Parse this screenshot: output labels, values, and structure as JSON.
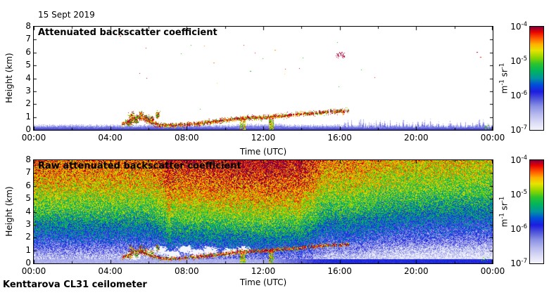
{
  "page": {
    "date_label": "15 Sept 2019",
    "footer_label": "Kenttarova CL31 ceilometer",
    "background": "#ffffff",
    "text_color": "#000000"
  },
  "panels": [
    {
      "title": "Attenuated backscatter coefficient",
      "xlabel": "Time (UTC)",
      "ylabel": "Height (km)"
    },
    {
      "title": "Raw attenuated backscatter coefficient",
      "xlabel": "Time (UTC)",
      "ylabel": "Height (km)"
    }
  ],
  "axes": {
    "x_tick_labels": [
      "00:00",
      "04:00",
      "08:00",
      "12:00",
      "16:00",
      "20:00",
      "00:00"
    ],
    "x_tick_hours": [
      0,
      4,
      8,
      12,
      16,
      20,
      24
    ],
    "x_minor_tick_hours": [
      2,
      6,
      10,
      14,
      18,
      22
    ],
    "y_tick_labels": [
      "0",
      "1",
      "2",
      "3",
      "4",
      "5",
      "6",
      "7",
      "8"
    ],
    "x_range_hours": [
      0,
      24
    ],
    "y_range_km": [
      0,
      8
    ]
  },
  "colorbar": {
    "tick_base": "10",
    "tick_exponents": [
      "-4",
      "-5",
      "-6",
      "-7"
    ],
    "unit_parts": [
      [
        "m",
        "n"
      ],
      [
        "-1",
        "s"
      ],
      [
        " sr",
        "n"
      ],
      [
        "-1",
        "s"
      ]
    ],
    "stops": [
      [
        0,
        "#f4f4fc"
      ],
      [
        0.07,
        "#dcdcf6"
      ],
      [
        0.15,
        "#b8baee"
      ],
      [
        0.23,
        "#8a90e4"
      ],
      [
        0.3,
        "#5056da"
      ],
      [
        0.37,
        "#1c1ce0"
      ],
      [
        0.44,
        "#0050d8"
      ],
      [
        0.5,
        "#0093a0"
      ],
      [
        0.57,
        "#00b360"
      ],
      [
        0.64,
        "#2cc42c"
      ],
      [
        0.7,
        "#8cd400"
      ],
      [
        0.77,
        "#e6e400"
      ],
      [
        0.83,
        "#ffb000"
      ],
      [
        0.89,
        "#ff5500"
      ],
      [
        0.95,
        "#e60000"
      ],
      [
        1,
        "#7c0040"
      ]
    ]
  },
  "chart_data": [
    {
      "type": "heatmap",
      "title": "Attenuated backscatter coefficient",
      "xlabel": "Time (UTC)",
      "ylabel": "Height (km)",
      "x_tick_labels": [
        "00:00",
        "04:00",
        "08:00",
        "12:00",
        "16:00",
        "20:00",
        "00:00"
      ],
      "x_range_hours": [
        0,
        24
      ],
      "y_range_km": [
        0,
        8
      ],
      "color_scale": {
        "type": "log",
        "min": "1e-7",
        "max": "1e-4",
        "unit": "m-1 sr-1",
        "colormap": "jet-white-low"
      },
      "description": "Mostly clear sky above a shallow blue boundary layer (0-0.5 km, spikier after 16:00). A dark-red aerosol/cloud-base layer rises from ~0.45 km at 04:40 to ~1.5 km at 16:20 with green/yellow fringes; precipitation streaks reach the ground near 10:50 and 12:20; isolated cloud returns near 16:00 at ~5.9 km, 17-18:00 at 4-5 km and ~23:15 at ~6 km.",
      "features": {
        "boundary_layer_top_km": [
          0.3,
          0.45
        ],
        "spiky_after_hour": 16,
        "layer_track": [
          [
            4.6,
            0.45
          ],
          [
            5,
            0.75
          ],
          [
            5.4,
            1
          ],
          [
            5.8,
            0.85
          ],
          [
            6.2,
            0.55
          ],
          [
            6.6,
            0.42
          ],
          [
            7.2,
            0.38
          ],
          [
            8,
            0.45
          ],
          [
            8.8,
            0.55
          ],
          [
            9.6,
            0.7
          ],
          [
            10.4,
            0.85
          ],
          [
            11.2,
            0.95
          ],
          [
            12,
            1
          ],
          [
            12.8,
            1.1
          ],
          [
            13.6,
            1.2
          ],
          [
            14.4,
            1.3
          ],
          [
            15.2,
            1.4
          ],
          [
            16.45,
            1.5
          ]
        ],
        "plume_blobs": [
          [
            5,
            0.55,
            0.15,
            0.2
          ],
          [
            5.1,
            1.1,
            0.15,
            0.3
          ],
          [
            5.35,
            0.75,
            0.12,
            0.25
          ],
          [
            5.6,
            1.15,
            0.13,
            0.3
          ],
          [
            5.85,
            0.95,
            0.15,
            0.3
          ],
          [
            6.15,
            0.8,
            0.12,
            0.25
          ],
          [
            6.45,
            1.2,
            0.1,
            0.25
          ]
        ],
        "streaks": [
          [
            10.78,
            11.06
          ],
          [
            12.28,
            12.5
          ]
        ],
        "cloud_specks": [
          [
            15.85,
            5.9
          ],
          [
            16.05,
            5.75
          ],
          [
            16.15,
            5.95
          ],
          [
            17.1,
            4.7
          ],
          [
            17.8,
            4.1
          ],
          [
            23.15,
            6.05
          ],
          [
            23.35,
            5.65
          ],
          [
            4.5,
            7.3
          ],
          [
            8.2,
            6.6
          ],
          [
            11.3,
            4.55
          ],
          [
            12.6,
            6.2
          ],
          [
            9.4,
            5.2
          ]
        ]
      }
    },
    {
      "type": "heatmap",
      "title": "Raw attenuated backscatter coefficient",
      "xlabel": "Time (UTC)",
      "ylabel": "Height (km)",
      "x_tick_labels": [
        "00:00",
        "04:00",
        "08:00",
        "12:00",
        "16:00",
        "20:00",
        "00:00"
      ],
      "x_range_hours": [
        0,
        24
      ],
      "y_range_km": [
        0,
        8
      ],
      "color_scale": {
        "type": "log",
        "min": "1e-7",
        "max": "1e-4",
        "unit": "m-1 sr-1",
        "colormap": "jet-white-low"
      },
      "description": "Noisy raw signal: apparent backscatter increases with altitude (red ~1e-4 aloft, green mid-levels, blue then near-white below 1.5 km, pale-blue surface band). Strongest 07:00-14:30, weakest after 16:30. Same rising aerosol layer and precipitation streaks as top panel; white low-signal patches 05:00-11:00 below 1.3 km.",
      "features": {
        "value_profile": [
          [
            0,
            0.17
          ],
          [
            0.35,
            0.09
          ],
          [
            1,
            0.2
          ],
          [
            2,
            0.37
          ],
          [
            4,
            0.59
          ],
          [
            6,
            0.76
          ],
          [
            7.5,
            0.85
          ],
          [
            8,
            0.88
          ]
        ],
        "time_boost_points": [
          [
            0,
            0.02
          ],
          [
            6,
            0.02
          ],
          [
            7,
            0.09
          ],
          [
            9,
            0.11
          ],
          [
            12,
            0.14
          ],
          [
            14,
            0.11
          ],
          [
            15,
            0.05
          ],
          [
            16.5,
            0
          ],
          [
            19,
            -0.07
          ],
          [
            24,
            -0.1
          ]
        ],
        "column_bumps": [
          [
            7.05,
            0.13,
            0.07
          ],
          [
            13.85,
            0.1,
            0.05
          ],
          [
            15.4,
            0.6,
            -0.05
          ]
        ],
        "surface_band_km": 0.35,
        "white_blobs": [
          [
            5.2,
            0.6
          ],
          [
            5.9,
            0.85
          ],
          [
            6.6,
            1.05
          ],
          [
            7.2,
            0.75
          ],
          [
            7.9,
            1.1
          ],
          [
            8.5,
            0.85
          ],
          [
            9.2,
            1.0
          ],
          [
            10.2,
            0.9
          ],
          [
            10.9,
            1.05
          ]
        ]
      }
    }
  ]
}
